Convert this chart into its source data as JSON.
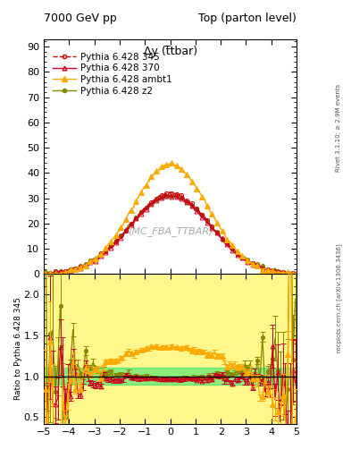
{
  "title_left": "7000 GeV pp",
  "title_right": "Top (parton level)",
  "plot_label": "Δy (t̅tbar)",
  "watermark": "(MC_FBA_TTBAR)",
  "rivet_label": "Rivet 3.1.10; ≥ 2.9M events",
  "arxiv_label": "mcplots.cern.ch [arXiv:1306.3436]",
  "ylabel_ratio": "Ratio to Pythia 6.428 345",
  "xlim": [
    -5,
    5
  ],
  "ylim_main": [
    0,
    93
  ],
  "ylim_ratio": [
    0.42,
    2.25
  ],
  "yticks_main": [
    0,
    10,
    20,
    30,
    40,
    50,
    60,
    70,
    80,
    90
  ],
  "yticks_ratio": [
    0.5,
    1.0,
    1.5,
    2.0
  ],
  "xticks": [
    -5,
    -4,
    -3,
    -2,
    -1,
    0,
    1,
    2,
    3,
    4,
    5
  ],
  "series": [
    {
      "label": "Pythia 6.428 345",
      "color": "#cc0000",
      "marker": "o",
      "ms": 3.0,
      "ls": "--",
      "ref": true
    },
    {
      "label": "Pythia 6.428 370",
      "color": "#cc0022",
      "marker": "^",
      "ms": 3.5,
      "ls": "-",
      "ref": false
    },
    {
      "label": "Pythia 6.428 ambt1",
      "color": "#ffaa00",
      "marker": "^",
      "ms": 4.0,
      "ls": "-",
      "ref": false
    },
    {
      "label": "Pythia 6.428 z2",
      "color": "#888800",
      "marker": "o",
      "ms": 3.0,
      "ls": "-",
      "ref": false
    }
  ],
  "bg_color": "#ffffff",
  "ref_band_yellow": "#ffee00",
  "ref_band_green": "#00dd66",
  "ratio_line_color": "#000000",
  "font_title": 9,
  "font_label": 8,
  "font_tick": 8,
  "font_legend": 7.5,
  "font_watermark": 8
}
